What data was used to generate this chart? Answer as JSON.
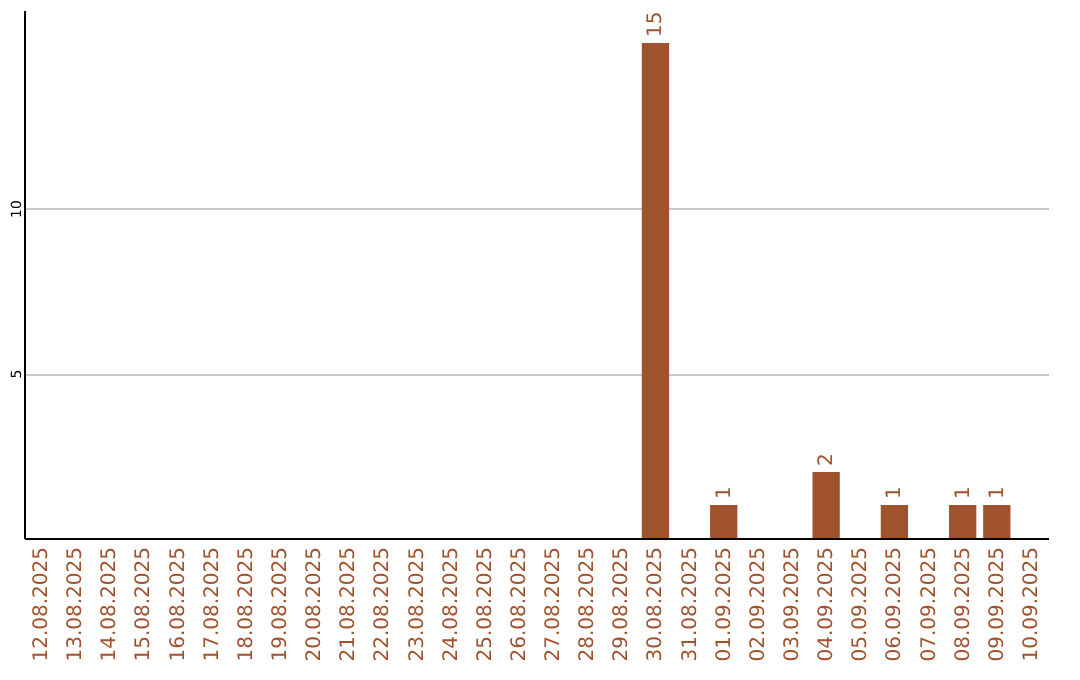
{
  "chart_data": {
    "type": "bar",
    "categories": [
      "12.08.2025",
      "13.08.2025",
      "14.08.2025",
      "15.08.2025",
      "16.08.2025",
      "17.08.2025",
      "18.08.2025",
      "19.08.2025",
      "20.08.2025",
      "21.08.2025",
      "22.08.2025",
      "23.08.2025",
      "24.08.2025",
      "25.08.2025",
      "26.08.2025",
      "27.08.2025",
      "28.08.2025",
      "29.08.2025",
      "30.08.2025",
      "31.08.2025",
      "01.09.2025",
      "02.09.2025",
      "03.09.2025",
      "04.09.2025",
      "05.09.2025",
      "06.09.2025",
      "07.09.2025",
      "08.09.2025",
      "09.09.2025",
      "10.09.2025"
    ],
    "values": [
      0,
      0,
      0,
      0,
      0,
      0,
      0,
      0,
      0,
      0,
      0,
      0,
      0,
      0,
      0,
      0,
      0,
      0,
      15,
      0,
      1,
      0,
      0,
      2,
      0,
      1,
      0,
      1,
      1,
      0
    ],
    "value_labels": [
      null,
      null,
      null,
      null,
      null,
      null,
      null,
      null,
      null,
      null,
      null,
      null,
      null,
      null,
      null,
      null,
      null,
      null,
      "15",
      null,
      "1",
      null,
      null,
      "2",
      null,
      "1",
      null,
      "1",
      "1",
      null
    ],
    "color": "#a0522d",
    "ylim": [
      0,
      16
    ],
    "yticks": [
      5,
      10
    ],
    "grid": "y"
  }
}
